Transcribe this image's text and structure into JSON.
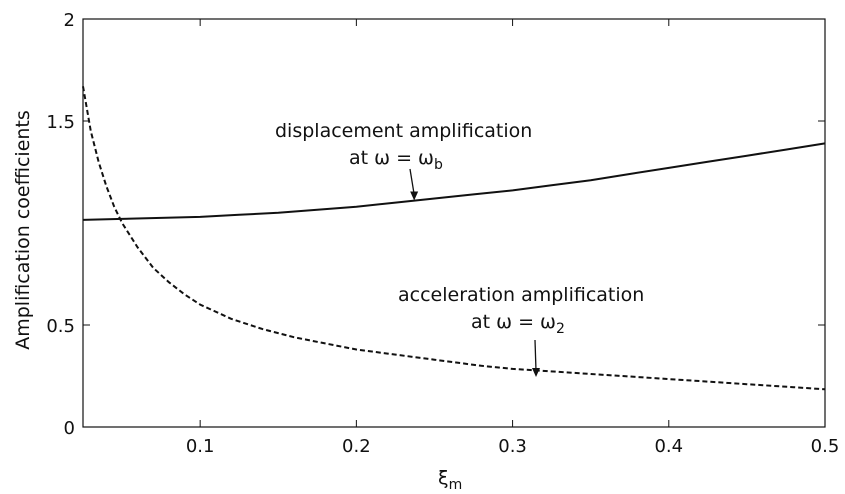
{
  "chart_data": {
    "type": "line",
    "title": "",
    "xlabel": "ξ",
    "xlabel_sub": "m",
    "ylabel": "Amplification coefficients",
    "xlim": [
      0.025,
      0.5
    ],
    "ylim": [
      0,
      2
    ],
    "x_ticks": [
      0.1,
      0.2,
      0.3,
      0.4,
      0.5
    ],
    "x_tick_labels": [
      "0.1",
      "0.2",
      "0.3",
      "0.4",
      "0.5"
    ],
    "y_ticks": [
      0,
      0.5,
      1.5,
      2
    ],
    "y_tick_labels": [
      "0",
      "0.5",
      "1.5",
      "2"
    ],
    "grid": false,
    "series": [
      {
        "style": "solid",
        "x": [
          0.025,
          0.05,
          0.075,
          0.1,
          0.125,
          0.15,
          0.175,
          0.2,
          0.225,
          0.25,
          0.275,
          0.3,
          0.325,
          0.35,
          0.375,
          0.4,
          0.425,
          0.45,
          0.475,
          0.5
        ],
        "y": [
          1.015,
          1.02,
          1.025,
          1.03,
          1.04,
          1.05,
          1.065,
          1.08,
          1.1,
          1.12,
          1.14,
          1.16,
          1.185,
          1.21,
          1.24,
          1.27,
          1.3,
          1.33,
          1.36,
          1.39
        ]
      },
      {
        "style": "dashed",
        "x": [
          0.025,
          0.03,
          0.035,
          0.04,
          0.045,
          0.05,
          0.06,
          0.07,
          0.08,
          0.09,
          0.1,
          0.12,
          0.14,
          0.16,
          0.18,
          0.2,
          0.22,
          0.25,
          0.28,
          0.3,
          0.33,
          0.35,
          0.38,
          0.4,
          0.43,
          0.45,
          0.48,
          0.5
        ],
        "y": [
          1.67,
          1.45,
          1.3,
          1.18,
          1.08,
          1.0,
          0.88,
          0.78,
          0.71,
          0.65,
          0.6,
          0.53,
          0.48,
          0.44,
          0.41,
          0.38,
          0.36,
          0.33,
          0.3,
          0.285,
          0.27,
          0.26,
          0.245,
          0.235,
          0.22,
          0.21,
          0.195,
          0.185
        ]
      }
    ],
    "annotations": [
      {
        "line1": "displacement amplification",
        "line2_prefix": "at ω = ω",
        "line2_sub": "b",
        "arrow_to": [
          0.237,
          1.11
        ]
      },
      {
        "line1": "acceleration amplification",
        "line2_prefix": "at ω = ω",
        "line2_sub": "2",
        "arrow_to": [
          0.315,
          0.245
        ]
      }
    ]
  }
}
